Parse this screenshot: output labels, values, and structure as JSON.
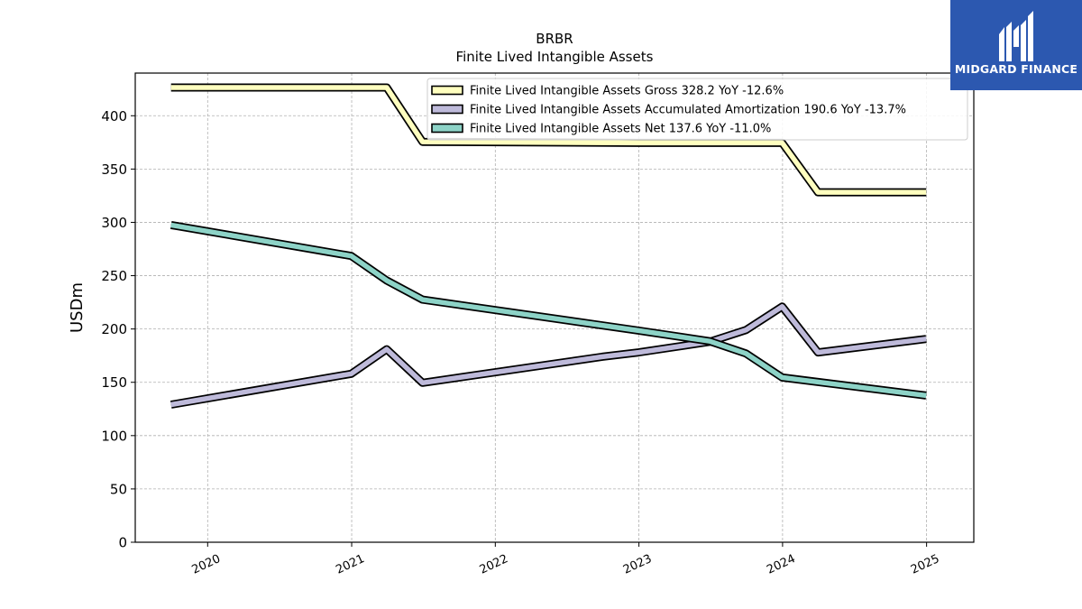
{
  "chart_data": {
    "type": "line",
    "title": "BRBR",
    "subtitle": "Finite Lived Intangible Assets",
    "xlabel": "",
    "ylabel": "USDm",
    "ylim": [
      0,
      440
    ],
    "xlim": [
      "2019-07-01",
      "2025-05-01"
    ],
    "yticks": [
      0,
      50,
      100,
      150,
      200,
      250,
      300,
      350,
      400
    ],
    "xticks": [
      "2020",
      "2021",
      "2022",
      "2023",
      "2024",
      "2025"
    ],
    "grid": true,
    "legend_position": "top-right",
    "series": [
      {
        "name": "Finite Lived Intangible Assets Gross",
        "legend": "Finite Lived Intangible Assets Gross  328.2 YoY -12.6%",
        "color": "#ffffbf",
        "points": [
          [
            "2019-09-30",
            426.5
          ],
          [
            "2020-12-31",
            426.5
          ],
          [
            "2021-03-31",
            426.5
          ],
          [
            "2021-06-30",
            375.5
          ],
          [
            "2022-12-31",
            374.5
          ],
          [
            "2023-12-31",
            374.5
          ],
          [
            "2024-03-31",
            328.2
          ],
          [
            "2024-12-31",
            328.2
          ]
        ]
      },
      {
        "name": "Finite Lived Intangible Assets Accumulated Amortization",
        "legend": "Finite Lived Intangible Assets Accumulated Amortization  190.6 YoY -13.7%",
        "color": "#bebada",
        "points": [
          [
            "2019-09-30",
            129
          ],
          [
            "2020-12-31",
            158
          ],
          [
            "2021-03-31",
            181
          ],
          [
            "2021-06-30",
            149.5
          ],
          [
            "2022-09-30",
            174
          ],
          [
            "2022-12-31",
            178
          ],
          [
            "2023-06-30",
            188
          ],
          [
            "2023-09-30",
            199
          ],
          [
            "2023-12-31",
            221
          ],
          [
            "2024-03-31",
            178
          ],
          [
            "2024-12-31",
            190.6
          ]
        ]
      },
      {
        "name": "Finite Lived Intangible Assets Net",
        "legend": "Finite Lived Intangible Assets Net  137.6 YoY -11.0%",
        "color": "#8dd3c7",
        "points": [
          [
            "2019-09-30",
            297.5
          ],
          [
            "2020-12-31",
            268.5
          ],
          [
            "2021-03-31",
            245.5
          ],
          [
            "2021-06-30",
            227.5
          ],
          [
            "2022-12-31",
            198.5
          ],
          [
            "2023-06-30",
            188.5
          ],
          [
            "2023-09-30",
            177
          ],
          [
            "2023-12-31",
            154.5
          ],
          [
            "2024-12-31",
            137.6
          ]
        ]
      }
    ]
  },
  "logo": {
    "text": "MIDGARD FINANCE",
    "background": "#2c58b0"
  }
}
